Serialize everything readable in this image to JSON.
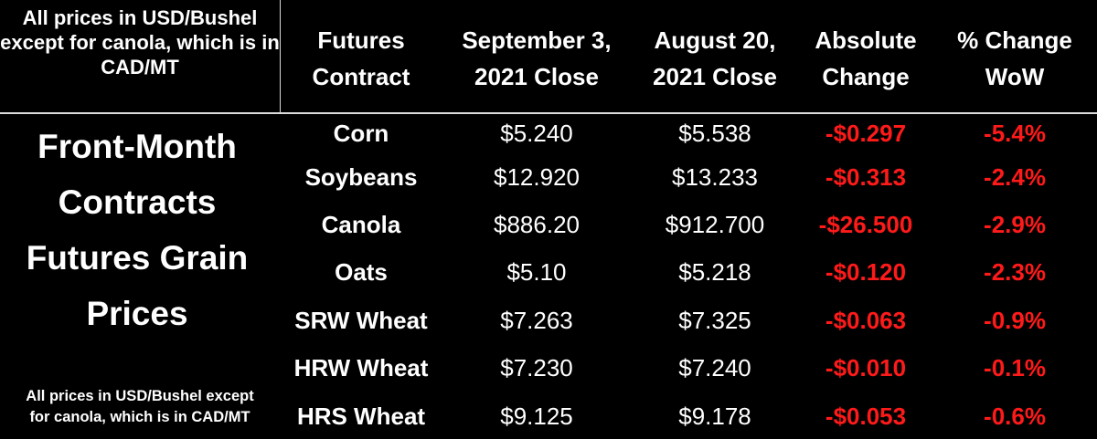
{
  "notes": {
    "top": "All prices in USD/Bushel except for canola, which is in CAD/MT",
    "bottom": "All prices in USD/Bushel except\nfor canola, which is in CAD/MT"
  },
  "side_label": "Front-Month\nContracts\nFutures Grain\nPrices",
  "colors": {
    "background": "#000000",
    "text": "#ffffff",
    "negative": "#ff1a1a",
    "divider": "#dcdcdc"
  },
  "chart_data": {
    "type": "table",
    "columns": [
      "Futures\nContract",
      "September 3,\n2021 Close",
      "August 20,\n2021 Close",
      "Absolute\nChange",
      "% Change\nWoW"
    ],
    "rows": [
      {
        "contract": "Corn",
        "sep3": "$5.240",
        "aug20": "$5.538",
        "abs_change": "-$0.297",
        "pct_change": "-5.4%"
      },
      {
        "contract": "Soybeans",
        "sep3": "$12.920",
        "aug20": "$13.233",
        "abs_change": "-$0.313",
        "pct_change": "-2.4%"
      },
      {
        "contract": "Canola",
        "sep3": "$886.20",
        "aug20": "$912.700",
        "abs_change": "-$26.500",
        "pct_change": "-2.9%"
      },
      {
        "contract": "Oats",
        "sep3": "$5.10",
        "aug20": "$5.218",
        "abs_change": "-$0.120",
        "pct_change": "-2.3%"
      },
      {
        "contract": "SRW Wheat",
        "sep3": "$7.263",
        "aug20": "$7.325",
        "abs_change": "-$0.063",
        "pct_change": "-0.9%"
      },
      {
        "contract": "HRW Wheat",
        "sep3": "$7.230",
        "aug20": "$7.240",
        "abs_change": "-$0.010",
        "pct_change": "-0.1%"
      },
      {
        "contract": "HRS Wheat",
        "sep3": "$9.125",
        "aug20": "$9.178",
        "abs_change": "-$0.053",
        "pct_change": "-0.6%"
      }
    ]
  }
}
